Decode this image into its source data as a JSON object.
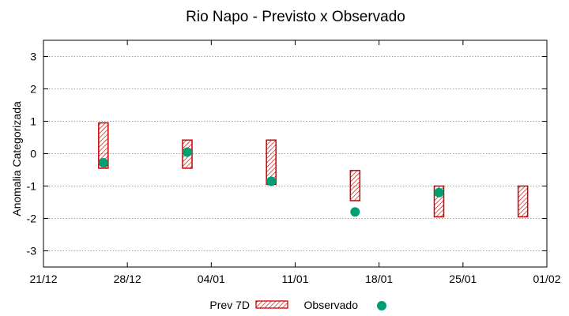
{
  "chart_data": {
    "type": "interval-scatter",
    "title": "Rio Napo - Previsto x Observado",
    "xlabel": "",
    "ylabel": "Anomalia Categorizada",
    "ylim": [
      -3.5,
      3.5
    ],
    "yticks": [
      -3,
      -2,
      -1,
      0,
      1,
      2,
      3
    ],
    "ytick_labels": [
      "-3",
      "-2",
      "-1",
      "0",
      "1",
      "2",
      "3"
    ],
    "x_range_days": [
      0,
      42
    ],
    "xticks": [
      {
        "day": 0,
        "label": "21/12"
      },
      {
        "day": 7,
        "label": "28/12"
      },
      {
        "day": 14,
        "label": "04/01"
      },
      {
        "day": 21,
        "label": "11/01"
      },
      {
        "day": 28,
        "label": "18/01"
      },
      {
        "day": 35,
        "label": "25/01"
      },
      {
        "day": 42,
        "label": "01/02"
      }
    ],
    "grid": true,
    "series": [
      {
        "name": "Prev 7D",
        "kind": "range",
        "color": "#cc0000",
        "points": [
          {
            "day": 5,
            "low": -0.45,
            "high": 0.95
          },
          {
            "day": 12,
            "low": -0.45,
            "high": 0.42
          },
          {
            "day": 19,
            "low": -0.95,
            "high": 0.42
          },
          {
            "day": 26,
            "low": -1.45,
            "high": -0.52
          },
          {
            "day": 33,
            "low": -1.95,
            "high": -1.0
          },
          {
            "day": 40,
            "low": -1.95,
            "high": -1.0
          }
        ]
      },
      {
        "name": "Observado",
        "kind": "points",
        "color": "#009e73",
        "points": [
          {
            "day": 5,
            "value": -0.28
          },
          {
            "day": 12,
            "value": 0.05
          },
          {
            "day": 19,
            "value": -0.85
          },
          {
            "day": 26,
            "value": -1.8
          },
          {
            "day": 33,
            "value": -1.2
          }
        ]
      }
    ],
    "legend": {
      "position": "bottom-center",
      "entries": [
        "Prev 7D",
        "Observado"
      ]
    }
  }
}
